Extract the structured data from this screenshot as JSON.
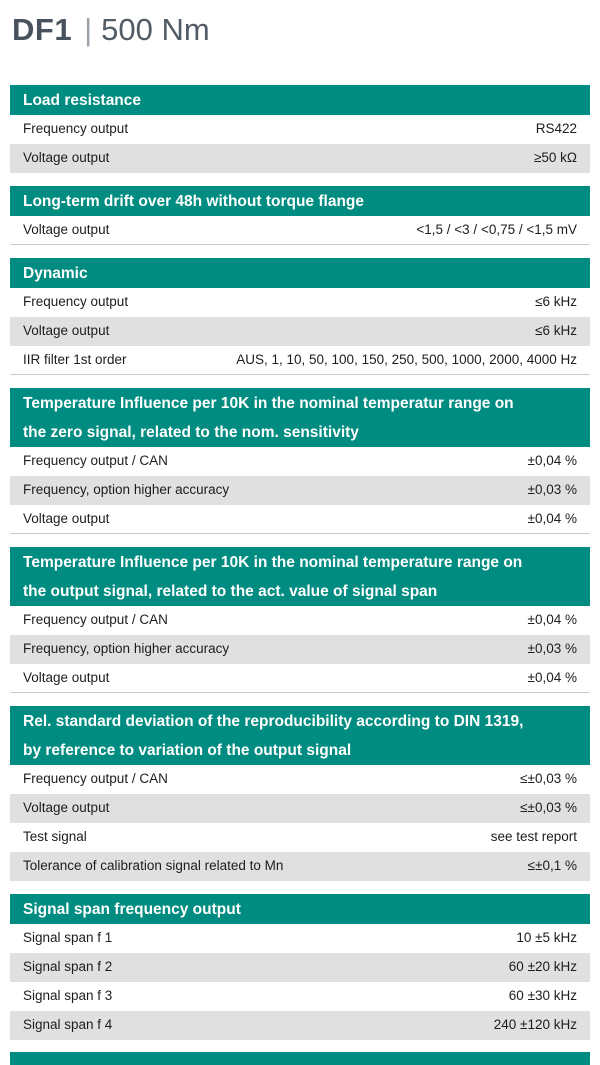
{
  "title": {
    "model": "DF1",
    "separator": "|",
    "range": "500 Nm"
  },
  "colors": {
    "accent_teal": "#008c81",
    "row_alt_gray": "#e0e0e0",
    "text_dark": "#1d1d1b",
    "title_gray": "#47525d"
  },
  "sections": [
    {
      "title": "Load resistance",
      "title_lines": [
        "Load resistance"
      ],
      "rows": [
        {
          "label": "Frequency output",
          "value": "RS422"
        },
        {
          "label": "Voltage output",
          "value": "≥50 kΩ"
        }
      ]
    },
    {
      "title": "Long-term drift over 48h without torque flange",
      "title_lines": [
        "Long-term drift over 48h without torque flange"
      ],
      "rows": [
        {
          "label": "Voltage output",
          "value": "<1,5 / <3 / <0,75 / <1,5 mV"
        }
      ]
    },
    {
      "title": "Dynamic",
      "title_lines": [
        "Dynamic"
      ],
      "rows": [
        {
          "label": "Frequency output",
          "value": "≤6 kHz"
        },
        {
          "label": "Voltage output",
          "value": "≤6 kHz"
        },
        {
          "label": "IIR filter 1st order",
          "value": "AUS, 1, 10, 50, 100, 150, 250, 500, 1000, 2000, 4000 Hz"
        }
      ]
    },
    {
      "title": "Temperature Influence per 10K in the nominal temperatur range on the zero signal, related to the nom. sensitivity",
      "title_lines": [
        "Temperature Influence per 10K in the nominal temperatur range on",
        "the zero signal, related to the nom. sensitivity"
      ],
      "rows": [
        {
          "label": "Frequency output / CAN",
          "value": "±0,04 %"
        },
        {
          "label": "Frequency, option higher accuracy",
          "value": "±0,03 %"
        },
        {
          "label": "Voltage output",
          "value": "±0,04 %"
        }
      ]
    },
    {
      "title": "Temperature Influence per 10K in the nominal temperature range on the output signal, related to the act. value of signal span",
      "title_lines": [
        "Temperature Influence per 10K in the nominal temperature range on",
        "the output signal, related to the act. value of signal span"
      ],
      "rows": [
        {
          "label": "Frequency output / CAN",
          "value": "±0,04 %"
        },
        {
          "label": "Frequency, option higher accuracy",
          "value": "±0,03 %"
        },
        {
          "label": "Voltage output",
          "value": "±0,04 %"
        }
      ]
    },
    {
      "title": "Rel. standard deviation of the reproducibility according to DIN 1319, by reference to variation of the output signal",
      "title_lines": [
        "Rel. standard deviation of the reproducibility  according to DIN 1319,",
        "by reference to variation of the output signal"
      ],
      "rows": [
        {
          "label": "Frequency output / CAN",
          "value": "≤±0,03 %"
        },
        {
          "label": "Voltage output",
          "value": "≤±0,03 %"
        },
        {
          "label": "Test signal",
          "value": "see test report"
        },
        {
          "label": "Tolerance of calibration signal related to Mn",
          "value": "≤±0,1 %"
        }
      ]
    },
    {
      "title": "Signal span frequency output",
      "title_lines": [
        "Signal span frequency output"
      ],
      "rows": [
        {
          "label": "Signal span f 1",
          "value": "10 ±5 kHz"
        },
        {
          "label": "Signal span f 2",
          "value": "60 ±20 kHz"
        },
        {
          "label": "Signal span f 3",
          "value": "60 ±30 kHz"
        },
        {
          "label": "Signal span f 4",
          "value": "240 ±120 kHz"
        }
      ]
    }
  ],
  "next_section_partial_bar": true
}
